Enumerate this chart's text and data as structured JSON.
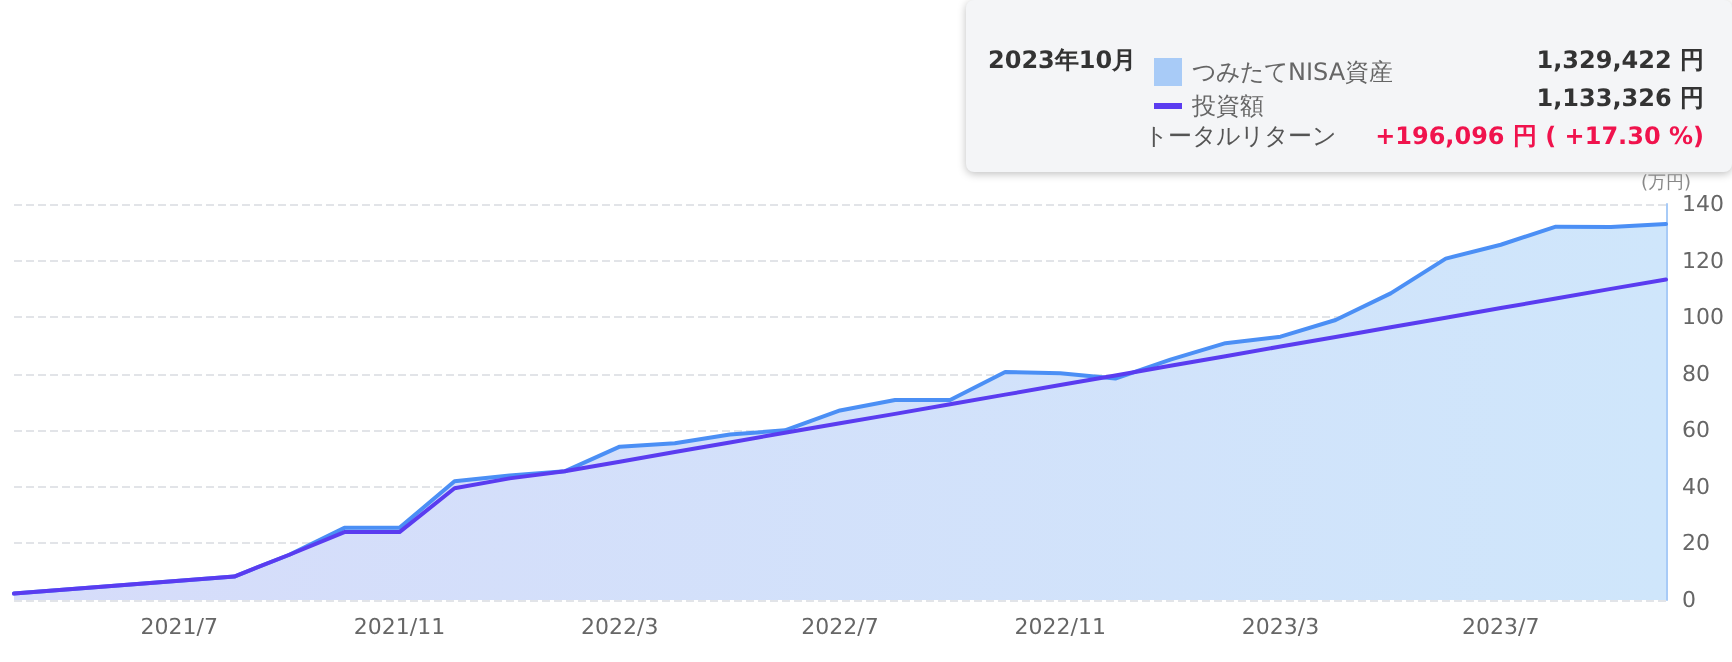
{
  "chart_data": {
    "type": "line",
    "categories": [
      null,
      null,
      null,
      "2021/7",
      null,
      null,
      null,
      "2021/11",
      null,
      null,
      null,
      "2022/3",
      null,
      null,
      null,
      "2022/7",
      null,
      null,
      null,
      "2022/11",
      null,
      null,
      null,
      "2023/3",
      null,
      null,
      null,
      "2023/7",
      null,
      null,
      null
    ],
    "series": [
      {
        "name": "つみたてNISA資産",
        "type": "area",
        "color": "#4b8ff5",
        "values": [
          2.3,
          3.8,
          5.3,
          6.8,
          8.3,
          16,
          25.5,
          25.5,
          42,
          44,
          45.5,
          54.2,
          55.4,
          58.5,
          60,
          67,
          70.7,
          70.7,
          80.6,
          80.2,
          78.3,
          85,
          90.8,
          93.1,
          99,
          108.4,
          120.7,
          125.6,
          132,
          131.9,
          132.9
        ]
      },
      {
        "name": "投資額",
        "type": "line",
        "color": "#5a3cf0",
        "values": [
          2.3,
          3.8,
          5.3,
          6.8,
          8.3,
          16,
          24,
          24,
          39.5,
          43,
          45.5,
          48.9,
          52.3,
          55.7,
          59.1,
          62.5,
          65.8,
          69.2,
          72.6,
          76.0,
          79.4,
          82.8,
          86.2,
          89.6,
          93.0,
          96.4,
          99.8,
          103.2,
          106.6,
          110.0,
          113.3
        ]
      }
    ],
    "ylabel": "(万円)",
    "ylim": [
      0,
      140
    ],
    "yticks": [
      0,
      20,
      40,
      60,
      80,
      100,
      120,
      140
    ],
    "grid": "y",
    "legend": "top right",
    "marker": "none",
    "annotations": [
      "2023年10月",
      "1,329,422 円",
      "1,133,326 円",
      "トータルリターン",
      "+196,096 円 ( +17.30 %)"
    ]
  }
}
